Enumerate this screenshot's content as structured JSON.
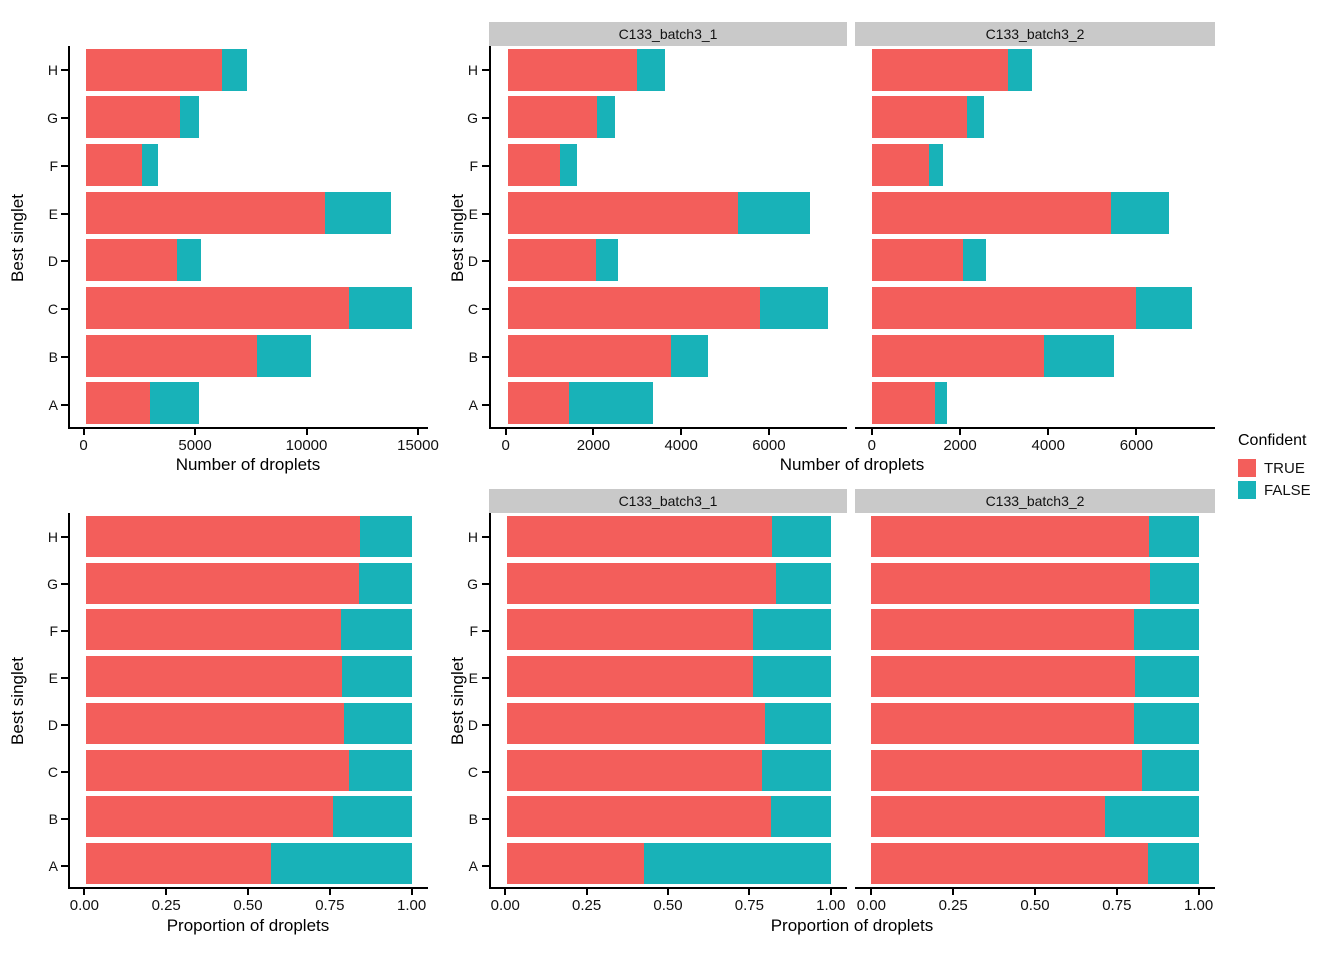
{
  "figure": {
    "background": "#ffffff",
    "rows": [
      "counts",
      "proportions"
    ],
    "facets": [
      "C133_batch3_1",
      "C133_batch3_2"
    ]
  },
  "colors": {
    "true": "#F35E5B",
    "false": "#18B2B8",
    "strip_bg": "#C9C9C9",
    "axis_line": "#000000",
    "text": "#111111"
  },
  "legend": {
    "title": "Confident",
    "items": [
      {
        "label": "TRUE",
        "color": "#F35E5B"
      },
      {
        "label": "FALSE",
        "color": "#18B2B8"
      }
    ],
    "position": "right-center"
  },
  "chart_data": [
    {
      "id": "counts-all",
      "type": "bar",
      "orientation": "horizontal",
      "stacked": true,
      "grid": false,
      "category_order": "H at top, A at bottom",
      "categories": [
        "H",
        "G",
        "F",
        "E",
        "D",
        "C",
        "B",
        "A"
      ],
      "series": [
        {
          "name": "TRUE",
          "color": "#F35E5B",
          "values": [
            6150,
            4280,
            2570,
            10800,
            4130,
            11870,
            7715,
            2910
          ]
        },
        {
          "name": "FALSE",
          "color": "#18B2B8",
          "values": [
            1150,
            820,
            715,
            2960,
            1080,
            2850,
            2465,
            2225
          ]
        }
      ],
      "xlabel": "Number of droplets",
      "ylabel": "Best singlet",
      "xlim": [
        -700,
        15450
      ],
      "xticks": [
        {
          "value": 0,
          "label": "0"
        },
        {
          "value": 5000,
          "label": "5000"
        },
        {
          "value": 10000,
          "label": "10000"
        },
        {
          "value": 15000,
          "label": "15000"
        }
      ]
    },
    {
      "id": "counts-batch1",
      "type": "bar",
      "orientation": "horizontal",
      "stacked": true,
      "grid": false,
      "facet_label": "C133_batch3_1",
      "categories": [
        "H",
        "G",
        "F",
        "E",
        "D",
        "C",
        "B",
        "A"
      ],
      "series": [
        {
          "name": "TRUE",
          "color": "#F35E5B",
          "values": [
            2960,
            2055,
            1210,
            5275,
            2025,
            5795,
            3735,
            1410
          ]
        },
        {
          "name": "FALSE",
          "color": "#18B2B8",
          "values": [
            660,
            415,
            380,
            1660,
            515,
            1555,
            855,
            1930
          ]
        }
      ],
      "xlabel": "Number of droplets",
      "ylabel": "Best singlet",
      "xlim": [
        -380,
        7780
      ],
      "xticks": [
        {
          "value": 0,
          "label": "0"
        },
        {
          "value": 2000,
          "label": "2000"
        },
        {
          "value": 4000,
          "label": "4000"
        },
        {
          "value": 6000,
          "label": "6000"
        }
      ]
    },
    {
      "id": "counts-batch2",
      "type": "bar",
      "orientation": "horizontal",
      "stacked": true,
      "grid": false,
      "facet_label": "C133_batch3_2",
      "categories": [
        "H",
        "G",
        "F",
        "E",
        "D",
        "C",
        "B",
        "A"
      ],
      "series": [
        {
          "name": "TRUE",
          "color": "#F35E5B",
          "values": [
            3085,
            2160,
            1290,
            5430,
            2075,
            6000,
            3915,
            1440
          ]
        },
        {
          "name": "FALSE",
          "color": "#18B2B8",
          "values": [
            550,
            380,
            320,
            1310,
            510,
            1250,
            1575,
            265
          ]
        }
      ],
      "xlabel": "Number of droplets",
      "ylabel": "Best singlet",
      "xlim": [
        -380,
        7780
      ],
      "xticks": [
        {
          "value": 0,
          "label": "0"
        },
        {
          "value": 2000,
          "label": "2000"
        },
        {
          "value": 4000,
          "label": "4000"
        },
        {
          "value": 6000,
          "label": "6000"
        }
      ]
    },
    {
      "id": "proportions-all",
      "type": "bar",
      "orientation": "horizontal",
      "stacked": true,
      "grid": false,
      "categories": [
        "H",
        "G",
        "F",
        "E",
        "D",
        "C",
        "B",
        "A"
      ],
      "series": [
        {
          "name": "TRUE",
          "color": "#F35E5B",
          "values": [
            0.842,
            0.839,
            0.782,
            0.785,
            0.793,
            0.806,
            0.758,
            0.567
          ]
        },
        {
          "name": "FALSE",
          "color": "#18B2B8",
          "values": [
            0.158,
            0.161,
            0.218,
            0.215,
            0.207,
            0.194,
            0.242,
            0.433
          ]
        }
      ],
      "xlabel": "Proportion of droplets",
      "ylabel": "Best singlet",
      "xlim": [
        -0.05,
        1.05
      ],
      "xticks": [
        {
          "value": 0,
          "label": "0.00"
        },
        {
          "value": 0.25,
          "label": "0.25"
        },
        {
          "value": 0.5,
          "label": "0.50"
        },
        {
          "value": 0.75,
          "label": "0.75"
        },
        {
          "value": 1.0,
          "label": "1.00"
        }
      ]
    },
    {
      "id": "proportions-batch1",
      "type": "bar",
      "orientation": "horizontal",
      "stacked": true,
      "grid": false,
      "facet_label": "C133_batch3_1",
      "categories": [
        "H",
        "G",
        "F",
        "E",
        "D",
        "C",
        "B",
        "A"
      ],
      "series": [
        {
          "name": "TRUE",
          "color": "#F35E5B",
          "values": [
            0.818,
            0.832,
            0.761,
            0.761,
            0.797,
            0.788,
            0.814,
            0.422
          ]
        },
        {
          "name": "FALSE",
          "color": "#18B2B8",
          "values": [
            0.182,
            0.168,
            0.239,
            0.239,
            0.203,
            0.212,
            0.186,
            0.578
          ]
        }
      ],
      "xlabel": "Proportion of droplets",
      "ylabel": "Best singlet",
      "xlim": [
        -0.05,
        1.05
      ],
      "xticks": [
        {
          "value": 0,
          "label": "0.00"
        },
        {
          "value": 0.25,
          "label": "0.25"
        },
        {
          "value": 0.5,
          "label": "0.50"
        },
        {
          "value": 0.75,
          "label": "0.75"
        },
        {
          "value": 1.0,
          "label": "1.00"
        }
      ]
    },
    {
      "id": "proportions-batch2",
      "type": "bar",
      "orientation": "horizontal",
      "stacked": true,
      "grid": false,
      "facet_label": "C133_batch3_2",
      "categories": [
        "H",
        "G",
        "F",
        "E",
        "D",
        "C",
        "B",
        "A"
      ],
      "series": [
        {
          "name": "TRUE",
          "color": "#F35E5B",
          "values": [
            0.849,
            0.85,
            0.801,
            0.806,
            0.803,
            0.828,
            0.713,
            0.845
          ]
        },
        {
          "name": "FALSE",
          "color": "#18B2B8",
          "values": [
            0.151,
            0.15,
            0.199,
            0.194,
            0.197,
            0.172,
            0.287,
            0.155
          ]
        }
      ],
      "xlabel": "Proportion of droplets",
      "ylabel": "Best singlet",
      "xlim": [
        -0.05,
        1.05
      ],
      "xticks": [
        {
          "value": 0,
          "label": "0.00"
        },
        {
          "value": 0.25,
          "label": "0.25"
        },
        {
          "value": 0.5,
          "label": "0.50"
        },
        {
          "value": 0.75,
          "label": "0.75"
        },
        {
          "value": 1.0,
          "label": "1.00"
        }
      ]
    }
  ]
}
